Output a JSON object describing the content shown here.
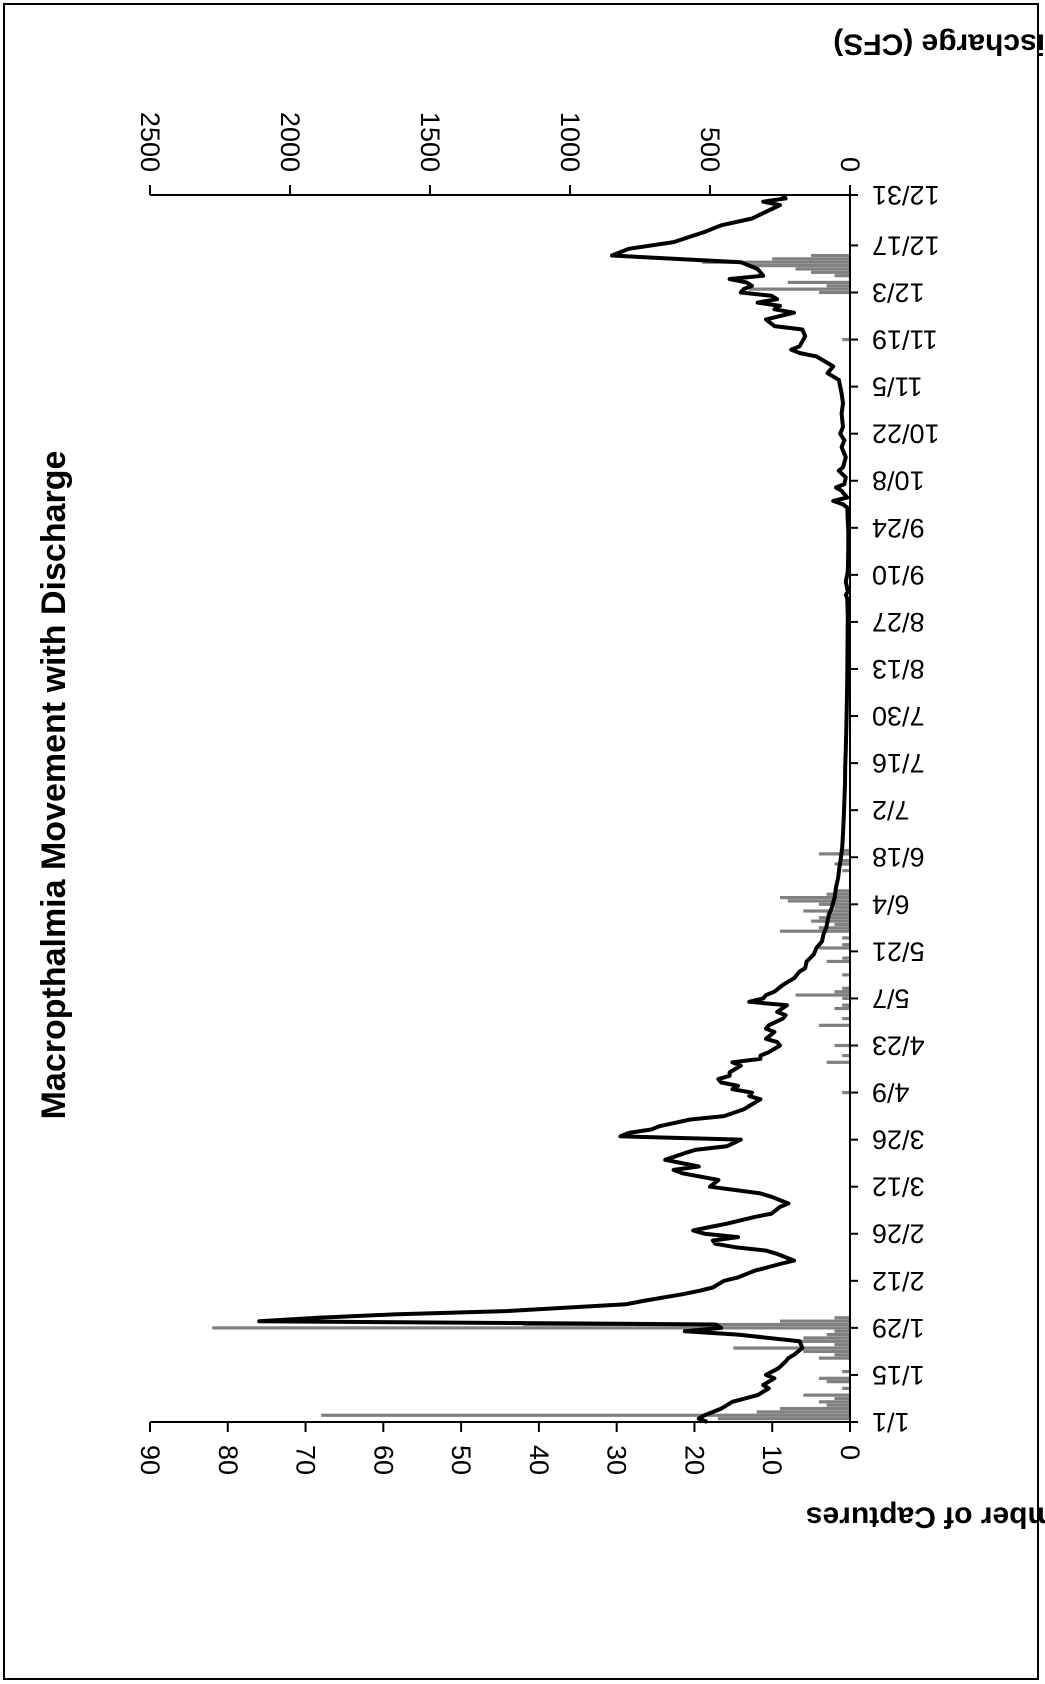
{
  "chart_data": {
    "type": "bar+line",
    "title": "Macropthalmia Movement with Discharge",
    "orientation": "rotated-180",
    "x_ticks": [
      "1/1",
      "1/15",
      "1/29",
      "2/12",
      "2/26",
      "3/12",
      "3/26",
      "4/9",
      "4/23",
      "5/7",
      "5/21",
      "6/4",
      "6/18",
      "7/2",
      "7/16",
      "7/30",
      "8/13",
      "8/27",
      "9/10",
      "9/24",
      "10/8",
      "10/22",
      "11/5",
      "11/19",
      "12/3",
      "12/17",
      "12/31"
    ],
    "x_range_days": [
      0,
      365
    ],
    "left_axis": {
      "label": "Number of Captures",
      "ylim": [
        0,
        90
      ],
      "ticks": [
        0,
        10,
        20,
        30,
        40,
        50,
        60,
        70,
        80,
        90
      ]
    },
    "right_axis": {
      "label": "Discharge (CFS)",
      "ylim": [
        0,
        2500
      ],
      "ticks": [
        0,
        500,
        1000,
        1500,
        2000,
        2500
      ]
    },
    "series": [
      {
        "kind": "bar",
        "axis": "left",
        "color": "#808080",
        "values": [
          {
            "day": 1,
            "v": 17
          },
          {
            "day": 2,
            "v": 68
          },
          {
            "day": 3,
            "v": 12
          },
          {
            "day": 4,
            "v": 9
          },
          {
            "day": 5,
            "v": 3
          },
          {
            "day": 6,
            "v": 4
          },
          {
            "day": 7,
            "v": 2
          },
          {
            "day": 8,
            "v": 6
          },
          {
            "day": 10,
            "v": 1
          },
          {
            "day": 12,
            "v": 3
          },
          {
            "day": 13,
            "v": 4
          },
          {
            "day": 15,
            "v": 1
          },
          {
            "day": 19,
            "v": 4
          },
          {
            "day": 20,
            "v": 2
          },
          {
            "day": 21,
            "v": 6
          },
          {
            "day": 22,
            "v": 15
          },
          {
            "day": 23,
            "v": 2
          },
          {
            "day": 24,
            "v": 7
          },
          {
            "day": 25,
            "v": 6
          },
          {
            "day": 26,
            "v": 3
          },
          {
            "day": 27,
            "v": 2
          },
          {
            "day": 28,
            "v": 82
          },
          {
            "day": 29,
            "v": 42
          },
          {
            "day": 30,
            "v": 9
          },
          {
            "day": 31,
            "v": 2
          },
          {
            "day": 98,
            "v": 1
          },
          {
            "day": 107,
            "v": 3
          },
          {
            "day": 109,
            "v": 1
          },
          {
            "day": 112,
            "v": 2
          },
          {
            "day": 118,
            "v": 4
          },
          {
            "day": 120,
            "v": 1
          },
          {
            "day": 123,
            "v": 2
          },
          {
            "day": 124,
            "v": 1
          },
          {
            "day": 126,
            "v": 1
          },
          {
            "day": 127,
            "v": 7
          },
          {
            "day": 128,
            "v": 2
          },
          {
            "day": 129,
            "v": 1
          },
          {
            "day": 133,
            "v": 1
          },
          {
            "day": 137,
            "v": 3
          },
          {
            "day": 138,
            "v": 1
          },
          {
            "day": 141,
            "v": 4
          },
          {
            "day": 142,
            "v": 1
          },
          {
            "day": 144,
            "v": 1
          },
          {
            "day": 146,
            "v": 9
          },
          {
            "day": 147,
            "v": 4
          },
          {
            "day": 148,
            "v": 2
          },
          {
            "day": 149,
            "v": 5
          },
          {
            "day": 150,
            "v": 4
          },
          {
            "day": 151,
            "v": 3
          },
          {
            "day": 152,
            "v": 6
          },
          {
            "day": 153,
            "v": 2
          },
          {
            "day": 154,
            "v": 4
          },
          {
            "day": 155,
            "v": 8
          },
          {
            "day": 156,
            "v": 9
          },
          {
            "day": 157,
            "v": 3
          },
          {
            "day": 158,
            "v": 2
          },
          {
            "day": 164,
            "v": 1
          },
          {
            "day": 166,
            "v": 2
          },
          {
            "day": 167,
            "v": 1
          },
          {
            "day": 169,
            "v": 4
          },
          {
            "day": 170,
            "v": 1
          },
          {
            "day": 322,
            "v": 1
          },
          {
            "day": 336,
            "v": 4
          },
          {
            "day": 337,
            "v": 13
          },
          {
            "day": 338,
            "v": 3
          },
          {
            "day": 339,
            "v": 8
          },
          {
            "day": 341,
            "v": 2
          },
          {
            "day": 342,
            "v": 5
          },
          {
            "day": 343,
            "v": 7
          },
          {
            "day": 344,
            "v": 13
          },
          {
            "day": 345,
            "v": 19
          },
          {
            "day": 346,
            "v": 10
          },
          {
            "day": 347,
            "v": 5
          }
        ]
      },
      {
        "kind": "line",
        "axis": "right",
        "color": "#000000",
        "points": [
          [
            0,
            510
          ],
          [
            1,
            540
          ],
          [
            2,
            520
          ],
          [
            4,
            460
          ],
          [
            6,
            420
          ],
          [
            8,
            330
          ],
          [
            10,
            290
          ],
          [
            11,
            310
          ],
          [
            13,
            270
          ],
          [
            14,
            300
          ],
          [
            16,
            255
          ],
          [
            18,
            230
          ],
          [
            19,
            220
          ],
          [
            20,
            200
          ],
          [
            22,
            170
          ],
          [
            24,
            180
          ],
          [
            26,
            400
          ],
          [
            27,
            590
          ],
          [
            28,
            460
          ],
          [
            29,
            480
          ],
          [
            30,
            2110
          ],
          [
            31,
            1900
          ],
          [
            32,
            1630
          ],
          [
            33,
            1230
          ],
          [
            35,
            800
          ],
          [
            36,
            740
          ],
          [
            38,
            600
          ],
          [
            39,
            540
          ],
          [
            40,
            490
          ],
          [
            42,
            450
          ],
          [
            43,
            400
          ],
          [
            45,
            340
          ],
          [
            47,
            250
          ],
          [
            48,
            200
          ],
          [
            50,
            260
          ],
          [
            51,
            300
          ],
          [
            52,
            410
          ],
          [
            53,
            480
          ],
          [
            54,
            490
          ],
          [
            55,
            400
          ],
          [
            56,
            520
          ],
          [
            57,
            560
          ],
          [
            58,
            500
          ],
          [
            59,
            440
          ],
          [
            61,
            340
          ],
          [
            62,
            280
          ],
          [
            64,
            250
          ],
          [
            65,
            220
          ],
          [
            67,
            280
          ],
          [
            68,
            320
          ],
          [
            70,
            500
          ],
          [
            72,
            470
          ],
          [
            74,
            600
          ],
          [
            75,
            630
          ],
          [
            76,
            540
          ],
          [
            78,
            660
          ],
          [
            80,
            590
          ],
          [
            81,
            550
          ],
          [
            82,
            440
          ],
          [
            84,
            390
          ],
          [
            85,
            820
          ],
          [
            86,
            790
          ],
          [
            87,
            710
          ],
          [
            88,
            680
          ],
          [
            90,
            570
          ],
          [
            91,
            450
          ],
          [
            93,
            380
          ],
          [
            94,
            360
          ],
          [
            96,
            320
          ],
          [
            97,
            360
          ],
          [
            98,
            350
          ],
          [
            99,
            420
          ],
          [
            100,
            400
          ],
          [
            101,
            460
          ],
          [
            102,
            470
          ],
          [
            103,
            430
          ],
          [
            104,
            430
          ],
          [
            106,
            390
          ],
          [
            107,
            420
          ],
          [
            108,
            320
          ],
          [
            109,
            320
          ],
          [
            110,
            290
          ],
          [
            112,
            250
          ],
          [
            113,
            260
          ],
          [
            114,
            300
          ],
          [
            116,
            270
          ],
          [
            117,
            300
          ],
          [
            118,
            290
          ],
          [
            120,
            240
          ],
          [
            121,
            230
          ],
          [
            122,
            260
          ],
          [
            124,
            225
          ],
          [
            125,
            360
          ],
          [
            126,
            310
          ],
          [
            127,
            300
          ],
          [
            128,
            270
          ],
          [
            130,
            240
          ],
          [
            131,
            220
          ],
          [
            132,
            200
          ],
          [
            134,
            180
          ],
          [
            135,
            160
          ],
          [
            137,
            155
          ],
          [
            139,
            130
          ],
          [
            141,
            120
          ],
          [
            143,
            100
          ],
          [
            145,
            95
          ],
          [
            147,
            85
          ],
          [
            149,
            80
          ],
          [
            151,
            75
          ],
          [
            153,
            65
          ],
          [
            156,
            55
          ],
          [
            159,
            50
          ],
          [
            162,
            42
          ],
          [
            165,
            38
          ],
          [
            168,
            32
          ],
          [
            171,
            28
          ],
          [
            175,
            25
          ],
          [
            180,
            22
          ],
          [
            185,
            20
          ],
          [
            190,
            18
          ],
          [
            195,
            17
          ],
          [
            200,
            15
          ],
          [
            210,
            12
          ],
          [
            220,
            10
          ],
          [
            240,
            8
          ],
          [
            245,
            10
          ],
          [
            246,
            15
          ],
          [
            247,
            8
          ],
          [
            250,
            15
          ],
          [
            253,
            8
          ],
          [
            260,
            6
          ],
          [
            265,
            6
          ],
          [
            268,
            8
          ],
          [
            272,
            10
          ],
          [
            273,
            25
          ],
          [
            274,
            60
          ],
          [
            275,
            10
          ],
          [
            277,
            30
          ],
          [
            278,
            50
          ],
          [
            279,
            20
          ],
          [
            281,
            15
          ],
          [
            283,
            40
          ],
          [
            284,
            25
          ],
          [
            287,
            15
          ],
          [
            290,
            30
          ],
          [
            292,
            20
          ],
          [
            294,
            35
          ],
          [
            296,
            25
          ],
          [
            300,
            30
          ],
          [
            303,
            25
          ],
          [
            306,
            30
          ],
          [
            310,
            40
          ],
          [
            312,
            80
          ],
          [
            314,
            60
          ],
          [
            317,
            120
          ],
          [
            318,
            180
          ],
          [
            319,
            210
          ],
          [
            320,
            180
          ],
          [
            323,
            160
          ],
          [
            325,
            170
          ],
          [
            326,
            270
          ],
          [
            328,
            300
          ],
          [
            330,
            200
          ],
          [
            331,
            270
          ],
          [
            332,
            250
          ],
          [
            333,
            330
          ],
          [
            334,
            260
          ],
          [
            335,
            280
          ],
          [
            336,
            390
          ],
          [
            337,
            380
          ],
          [
            338,
            350
          ],
          [
            339,
            370
          ],
          [
            340,
            430
          ],
          [
            341,
            310
          ],
          [
            343,
            330
          ],
          [
            345,
            390
          ],
          [
            347,
            850
          ],
          [
            349,
            790
          ],
          [
            351,
            630
          ],
          [
            354,
            520
          ],
          [
            356,
            460
          ],
          [
            358,
            350
          ],
          [
            360,
            300
          ],
          [
            362,
            250
          ],
          [
            363,
            310
          ],
          [
            364,
            230
          ],
          [
            365,
            240
          ]
        ]
      }
    ]
  }
}
